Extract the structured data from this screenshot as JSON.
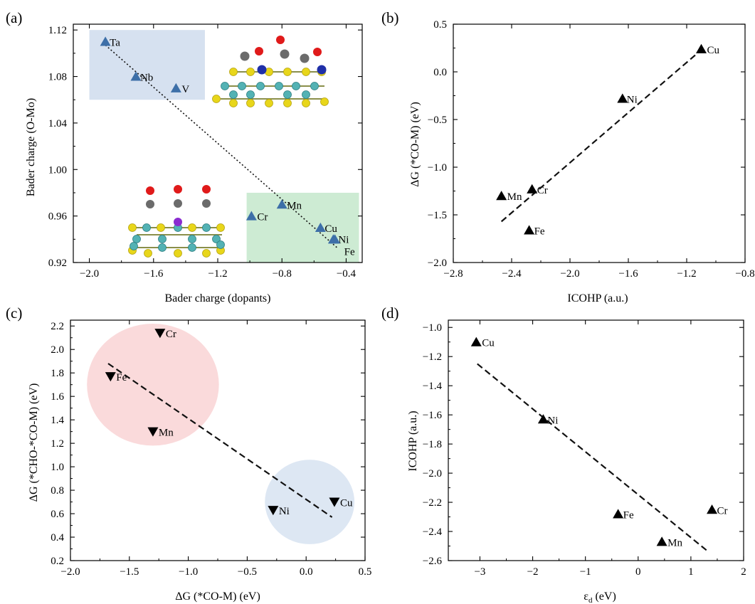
{
  "chart_data": [
    {
      "panel": "(a)",
      "type": "scatter",
      "xlabel": "Bader charge (dopants)",
      "ylabel": "Bader charge (O-Mo)",
      "xlim": [
        -2.1,
        -0.3
      ],
      "ylim": [
        0.92,
        1.125
      ],
      "xticks": [
        -2.0,
        -1.6,
        -1.2,
        -0.8,
        -0.4
      ],
      "yticks": [
        0.92,
        0.96,
        1.0,
        1.04,
        1.08,
        1.12
      ],
      "tick_decimals_x": 1,
      "tick_decimals_y": 2,
      "marker": "triangle-up",
      "marker_color": "#3d6fa8",
      "fit_line": {
        "style": "dotted",
        "from": [
          -1.9,
          1.107
        ],
        "to": [
          -0.45,
          0.932
        ]
      },
      "regions": [
        {
          "name": "early-dopant-region",
          "color": "#d6e1f0",
          "x": [
            -2.0,
            -1.28
          ],
          "y": [
            1.06,
            1.12
          ]
        },
        {
          "name": "late-dopant-region",
          "color": "#cdebd3",
          "x": [
            -1.02,
            -0.32
          ],
          "y": [
            0.92,
            0.98
          ]
        }
      ],
      "points": [
        {
          "label": "Ta",
          "x": -1.9,
          "y": 1.11
        },
        {
          "label": "Nb",
          "x": -1.71,
          "y": 1.08
        },
        {
          "label": "V",
          "x": -1.46,
          "y": 1.07
        },
        {
          "label": "Cr",
          "x": -0.99,
          "y": 0.96
        },
        {
          "label": "Mn",
          "x": -0.8,
          "y": 0.97
        },
        {
          "label": "Cu",
          "x": -0.56,
          "y": 0.95
        },
        {
          "label": "Ni",
          "x": -0.48,
          "y": 0.94
        },
        {
          "label": "Fe",
          "x": -0.47,
          "y": 0.94
        }
      ]
    },
    {
      "panel": "(b)",
      "type": "scatter",
      "xlabel": "ICOHP (a.u.)",
      "ylabel": "ΔG (*CO-M) (eV)",
      "xlim": [
        -2.8,
        -0.8
      ],
      "ylim": [
        -2.0,
        0.5
      ],
      "xticks": [
        -2.8,
        -2.4,
        -2.0,
        -1.6,
        -1.2,
        -0.8
      ],
      "yticks": [
        -2.0,
        -1.5,
        -1.0,
        -0.5,
        0.0,
        0.5
      ],
      "tick_decimals_x": 1,
      "tick_decimals_y": 1,
      "marker": "triangle-up",
      "marker_color": "#000000",
      "fit_line": {
        "style": "dashed",
        "from": [
          -2.47,
          -1.57
        ],
        "to": [
          -1.1,
          0.23
        ]
      },
      "points": [
        {
          "label": "Cu",
          "x": -1.1,
          "y": 0.24
        },
        {
          "label": "Ni",
          "x": -1.64,
          "y": -0.28
        },
        {
          "label": "Cr",
          "x": -2.26,
          "y": -1.23
        },
        {
          "label": "Mn",
          "x": -2.47,
          "y": -1.3
        },
        {
          "label": "Fe",
          "x": -2.28,
          "y": -1.66
        }
      ]
    },
    {
      "panel": "(c)",
      "type": "scatter",
      "xlabel": "ΔG (*CO-M) (eV)",
      "ylabel": "ΔG (*CHO-*CO-M) (eV)",
      "xlim": [
        -2.0,
        0.5
      ],
      "ylim": [
        0.2,
        2.25
      ],
      "xticks": [
        -2.0,
        -1.5,
        -1.0,
        -0.5,
        0.0,
        0.5
      ],
      "yticks": [
        0.2,
        0.4,
        0.6,
        0.8,
        1.0,
        1.2,
        1.4,
        1.6,
        1.8,
        2.0,
        2.2
      ],
      "tick_decimals_x": 1,
      "tick_decimals_y": 1,
      "marker": "triangle-down",
      "marker_color": "#000000",
      "fit_line": {
        "style": "dashed",
        "from": [
          -1.68,
          1.88
        ],
        "to": [
          0.22,
          0.57
        ]
      },
      "circles": [
        {
          "name": "strong-binding-circle",
          "color": "#fadadb",
          "cx": -1.3,
          "cy": 1.7,
          "rx": 0.56,
          "ry": 0.52
        },
        {
          "name": "weak-binding-circle",
          "color": "#dde7f3",
          "cx": 0.03,
          "cy": 0.7,
          "rx": 0.38,
          "ry": 0.36
        }
      ],
      "points": [
        {
          "label": "Cr",
          "x": -1.24,
          "y": 2.14
        },
        {
          "label": "Fe",
          "x": -1.66,
          "y": 1.77
        },
        {
          "label": "Mn",
          "x": -1.3,
          "y": 1.3
        },
        {
          "label": "Ni",
          "x": -0.28,
          "y": 0.63
        },
        {
          "label": "Cu",
          "x": 0.24,
          "y": 0.7
        }
      ]
    },
    {
      "panel": "(d)",
      "type": "scatter",
      "xlabel": "εd (eV)",
      "xlabel_main": "ε",
      "xlabel_sub": "d",
      "xlabel_unit": " (eV)",
      "ylabel": "ICOHP (a.u.)",
      "xlim": [
        -3.6,
        2.0
      ],
      "ylim": [
        -2.6,
        -0.95
      ],
      "xticks": [
        -3,
        -2,
        -1,
        0,
        1,
        2
      ],
      "yticks": [
        -2.6,
        -2.4,
        -2.2,
        -2.0,
        -1.8,
        -1.6,
        -1.4,
        -1.2,
        -1.0
      ],
      "tick_decimals_x": 0,
      "tick_decimals_y": 1,
      "marker": "triangle-up",
      "marker_color": "#000000",
      "fit_line": {
        "style": "dashed",
        "from": [
          -3.05,
          -1.25
        ],
        "to": [
          1.3,
          -2.53
        ]
      },
      "points": [
        {
          "label": "Cu",
          "x": -3.07,
          "y": -1.1
        },
        {
          "label": "Ni",
          "x": -1.8,
          "y": -1.63
        },
        {
          "label": "Fe",
          "x": -0.38,
          "y": -2.28
        },
        {
          "label": "Mn",
          "x": 0.45,
          "y": -2.47
        },
        {
          "label": "Cr",
          "x": 1.4,
          "y": -2.25
        }
      ]
    }
  ]
}
